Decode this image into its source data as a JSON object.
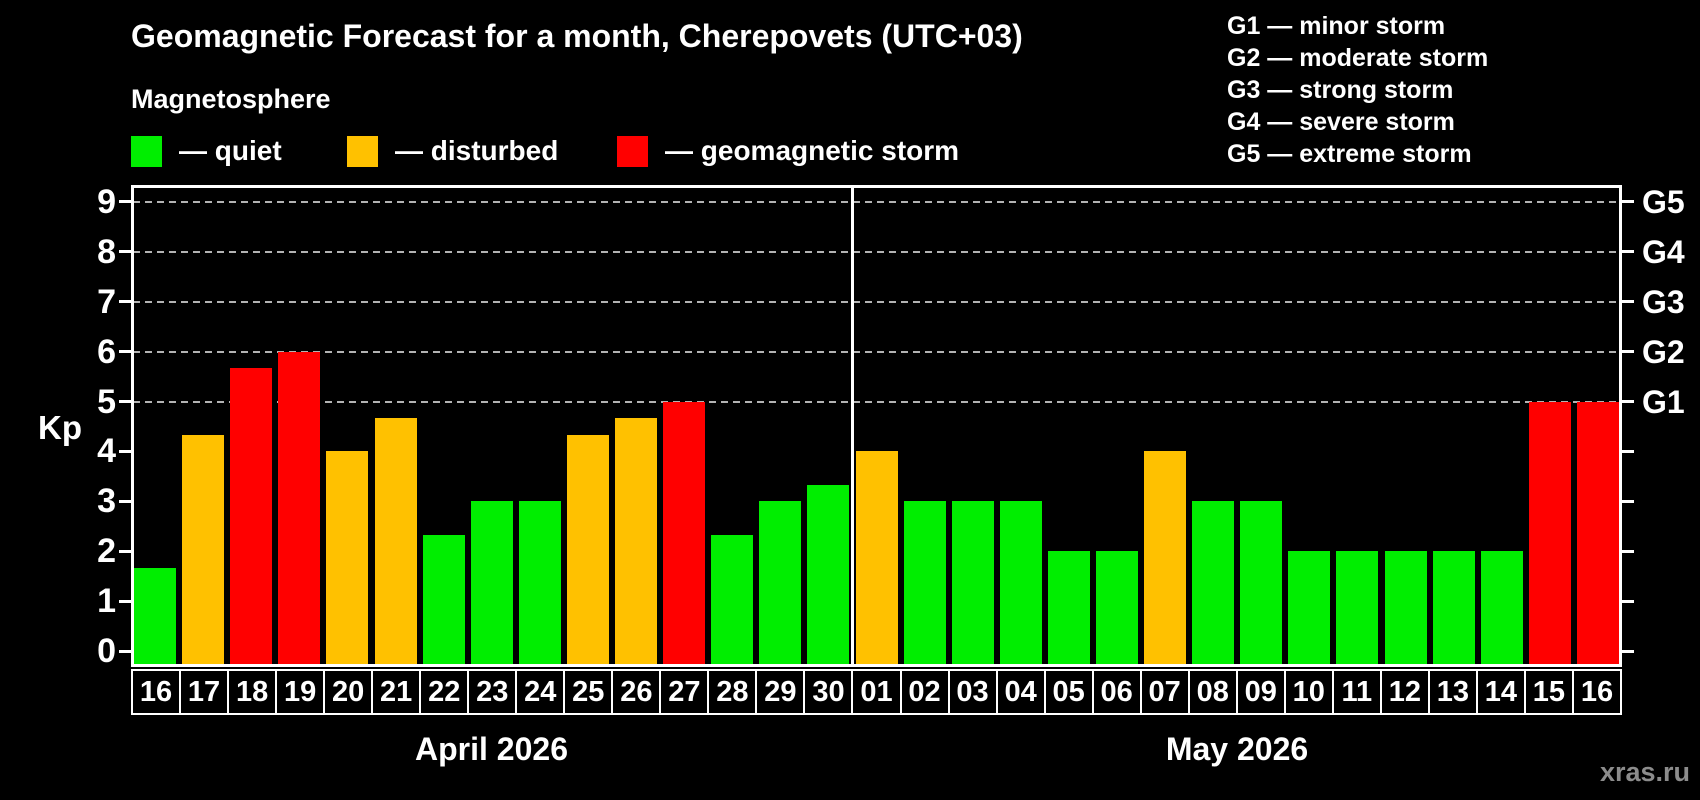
{
  "header": {
    "title": "Geomagnetic Forecast for a month, Cherepovets (UTC+03)",
    "subtitle": "Magnetosphere"
  },
  "legend": {
    "items": [
      {
        "key": "quiet",
        "label": "— quiet",
        "color": "#00ee00"
      },
      {
        "key": "disturbed",
        "label": "— disturbed",
        "color": "#ffc100"
      },
      {
        "key": "storm",
        "label": "— geomagnetic storm",
        "color": "#ff0000"
      }
    ]
  },
  "g_legend": {
    "lines": [
      "G1 — minor storm",
      "G2 — moderate storm",
      "G3 — strong storm",
      "G4 — severe storm",
      "G5 — extreme storm"
    ]
  },
  "watermark": "xras.ru",
  "chart_data": {
    "type": "bar",
    "title": "Geomagnetic Forecast for a month, Cherepovets (UTC+03)",
    "ylabel": "Kp",
    "ylim": [
      0,
      9
    ],
    "yticks": [
      0,
      1,
      2,
      3,
      4,
      5,
      6,
      7,
      8,
      9
    ],
    "gridlines_at_kp": [
      5,
      6,
      7,
      8,
      9
    ],
    "grid": "dashed horizontal at Kp 5-9 only",
    "legend_position": "top-left",
    "right_axis": [
      {
        "kp": 5,
        "label": "G1"
      },
      {
        "kp": 6,
        "label": "G2"
      },
      {
        "kp": 7,
        "label": "G3"
      },
      {
        "kp": 8,
        "label": "G4"
      },
      {
        "kp": 9,
        "label": "G5"
      }
    ],
    "status_colors": {
      "quiet": "#00ee00",
      "disturbed": "#ffc100",
      "storm": "#ff0000"
    },
    "groups": [
      {
        "label": "April 2026",
        "days": [
          {
            "day": "16",
            "kp": 1.67,
            "status": "quiet"
          },
          {
            "day": "17",
            "kp": 4.33,
            "status": "disturbed"
          },
          {
            "day": "18",
            "kp": 5.67,
            "status": "storm"
          },
          {
            "day": "19",
            "kp": 6.0,
            "status": "storm"
          },
          {
            "day": "20",
            "kp": 4.0,
            "status": "disturbed"
          },
          {
            "day": "21",
            "kp": 4.67,
            "status": "disturbed"
          },
          {
            "day": "22",
            "kp": 2.33,
            "status": "quiet"
          },
          {
            "day": "23",
            "kp": 3.0,
            "status": "quiet"
          },
          {
            "day": "24",
            "kp": 3.0,
            "status": "quiet"
          },
          {
            "day": "25",
            "kp": 4.33,
            "status": "disturbed"
          },
          {
            "day": "26",
            "kp": 4.67,
            "status": "disturbed"
          },
          {
            "day": "27",
            "kp": 5.0,
            "status": "storm"
          },
          {
            "day": "28",
            "kp": 2.33,
            "status": "quiet"
          },
          {
            "day": "29",
            "kp": 3.0,
            "status": "quiet"
          },
          {
            "day": "30",
            "kp": 3.33,
            "status": "quiet"
          }
        ]
      },
      {
        "label": "May 2026",
        "days": [
          {
            "day": "01",
            "kp": 4.0,
            "status": "disturbed"
          },
          {
            "day": "02",
            "kp": 3.0,
            "status": "quiet"
          },
          {
            "day": "03",
            "kp": 3.0,
            "status": "quiet"
          },
          {
            "day": "04",
            "kp": 3.0,
            "status": "quiet"
          },
          {
            "day": "05",
            "kp": 2.0,
            "status": "quiet"
          },
          {
            "day": "06",
            "kp": 2.0,
            "status": "quiet"
          },
          {
            "day": "07",
            "kp": 4.0,
            "status": "disturbed"
          },
          {
            "day": "08",
            "kp": 3.0,
            "status": "quiet"
          },
          {
            "day": "09",
            "kp": 3.0,
            "status": "quiet"
          },
          {
            "day": "10",
            "kp": 2.0,
            "status": "quiet"
          },
          {
            "day": "11",
            "kp": 2.0,
            "status": "quiet"
          },
          {
            "day": "12",
            "kp": 2.0,
            "status": "quiet"
          },
          {
            "day": "13",
            "kp": 2.0,
            "status": "quiet"
          },
          {
            "day": "14",
            "kp": 2.0,
            "status": "quiet"
          },
          {
            "day": "15",
            "kp": 5.0,
            "status": "storm"
          },
          {
            "day": "16",
            "kp": 5.0,
            "status": "storm"
          }
        ]
      }
    ]
  }
}
